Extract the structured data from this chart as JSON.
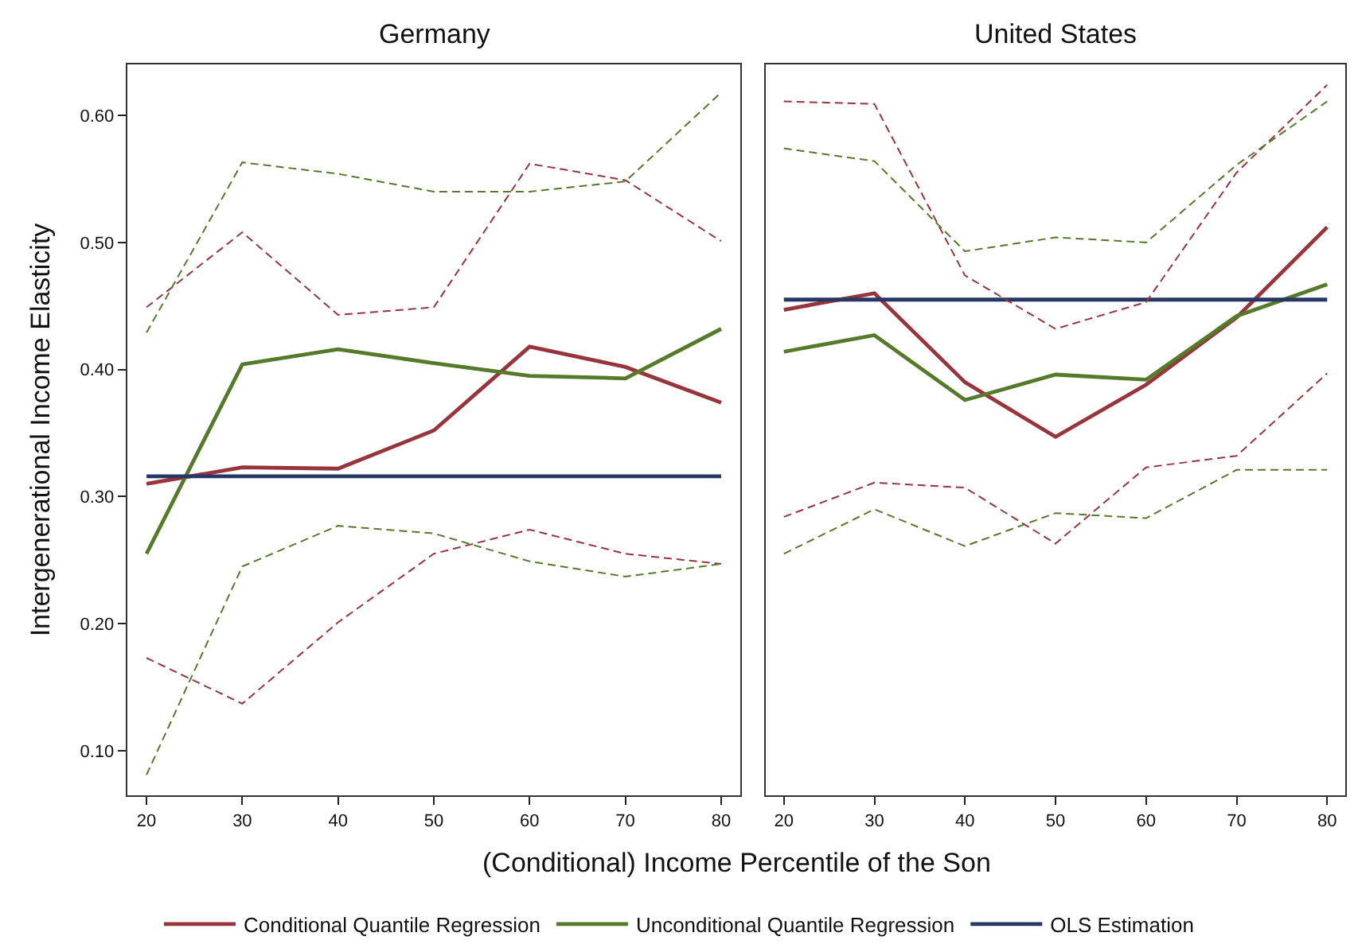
{
  "chart_data": [
    {
      "type": "line",
      "title": "Germany",
      "xlabel": "(Conditional) Income Percentile of the Son",
      "ylabel": "Intergenerational Income Elasticity",
      "x": [
        20,
        30,
        40,
        50,
        60,
        70,
        80
      ],
      "xlim": [
        18,
        82
      ],
      "xticks": [
        20,
        30,
        40,
        50,
        60,
        70,
        80
      ],
      "ylim": [
        0.065,
        0.64
      ],
      "yticks": [
        {
          "value": 0.1,
          "label": "0.10"
        },
        {
          "value": 0.2,
          "label": "0.20"
        },
        {
          "value": 0.3,
          "label": "0.30"
        },
        {
          "value": 0.4,
          "label": "0.40"
        },
        {
          "value": 0.5,
          "label": "0.50"
        },
        {
          "value": 0.6,
          "label": "0.60"
        }
      ],
      "legend": "bottom",
      "series": [
        {
          "name": "Conditional Quantile Regression",
          "color": "#98343c",
          "line_style": "solid",
          "values": [
            0.31,
            0.323,
            0.322,
            0.352,
            0.418,
            0.402,
            0.374
          ]
        },
        {
          "name": "Unconditional Quantile Regression",
          "color": "#557a2a",
          "line_style": "solid",
          "values": [
            0.255,
            0.404,
            0.416,
            0.405,
            0.395,
            0.393,
            0.432
          ]
        },
        {
          "name": "OLS Estimation",
          "color": "#263764",
          "line_style": "solid",
          "values": [
            0.316,
            0.316,
            0.316,
            0.316,
            0.316,
            0.316,
            0.316
          ]
        },
        {
          "color": "#98343c",
          "line_style": "dashed",
          "values": [
            0.449,
            0.508,
            0.443,
            0.449,
            0.562,
            0.549,
            0.501
          ]
        },
        {
          "color": "#98343c",
          "line_style": "dashed",
          "values": [
            0.173,
            0.137,
            0.201,
            0.255,
            0.274,
            0.255,
            0.247
          ]
        },
        {
          "color": "#557a2a",
          "line_style": "dashed",
          "values": [
            0.429,
            0.563,
            0.554,
            0.54,
            0.54,
            0.548,
            0.618
          ]
        },
        {
          "color": "#557a2a",
          "line_style": "dashed",
          "values": [
            0.081,
            0.245,
            0.277,
            0.271,
            0.249,
            0.237,
            0.247
          ]
        }
      ]
    },
    {
      "type": "line",
      "title": "United States",
      "x": [
        20,
        30,
        40,
        50,
        60,
        70,
        80
      ],
      "xlim": [
        18,
        82
      ],
      "xticks": [
        20,
        30,
        40,
        50,
        60,
        70,
        80
      ],
      "ylim": [
        0.065,
        0.64
      ],
      "tick_labels": "x",
      "legend": "bottom",
      "series": [
        {
          "name": "Conditional Quantile Regression",
          "color": "#98343c",
          "line_style": "solid",
          "values": [
            0.447,
            0.46,
            0.39,
            0.347,
            0.388,
            0.441,
            0.512
          ]
        },
        {
          "name": "Unconditional Quantile Regression",
          "color": "#557a2a",
          "line_style": "solid",
          "values": [
            0.414,
            0.427,
            0.376,
            0.396,
            0.392,
            0.442,
            0.467
          ]
        },
        {
          "name": "OLS Estimation",
          "color": "#263764",
          "line_style": "solid",
          "values": [
            0.455,
            0.455,
            0.455,
            0.455,
            0.455,
            0.455,
            0.455
          ]
        },
        {
          "color": "#98343c",
          "line_style": "dashed",
          "values": [
            0.611,
            0.609,
            0.474,
            0.432,
            0.453,
            0.555,
            0.624
          ]
        },
        {
          "color": "#98343c",
          "line_style": "dashed",
          "values": [
            0.284,
            0.311,
            0.307,
            0.263,
            0.323,
            0.332,
            0.397
          ]
        },
        {
          "color": "#557a2a",
          "line_style": "dashed",
          "values": [
            0.574,
            0.564,
            0.493,
            0.504,
            0.5,
            0.561,
            0.611
          ]
        },
        {
          "color": "#557a2a",
          "line_style": "dashed",
          "values": [
            0.255,
            0.29,
            0.261,
            0.287,
            0.283,
            0.321,
            0.321
          ]
        }
      ]
    }
  ]
}
